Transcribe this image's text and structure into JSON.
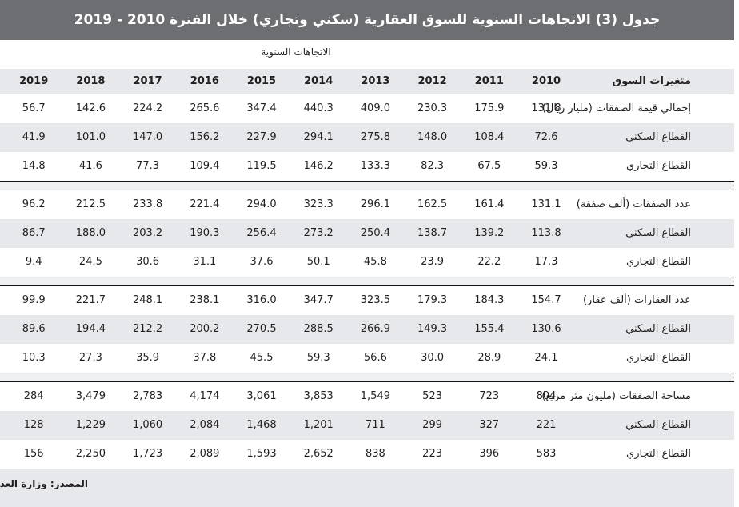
{
  "header": {
    "title": "جدول (3) الاتجاهات السنوية للسوق العقارية (سكني وتجاري) خلال الفترة 2010 - 2019",
    "subheading": "الاتجاهات السنوية"
  },
  "table": {
    "columns": [
      "متغيرات السوق",
      "2010",
      "2011",
      "2012",
      "2013",
      "2014",
      "2015",
      "2016",
      "2017",
      "2018",
      "2019"
    ],
    "groups": [
      [
        {
          "label": "إجمالي قيمة الصفقات (مليار ريال)",
          "values": [
            "131.8",
            "175.9",
            "230.3",
            "409.0",
            "440.3",
            "347.4",
            "265.6",
            "224.2",
            "142.6",
            "56.7"
          ]
        },
        {
          "label": "القطاع السكني",
          "values": [
            "72.6",
            "108.4",
            "148.0",
            "275.8",
            "294.1",
            "227.9",
            "156.2",
            "147.0",
            "101.0",
            "41.9"
          ]
        },
        {
          "label": "القطاع التجاري",
          "values": [
            "59.3",
            "67.5",
            "82.3",
            "133.3",
            "146.2",
            "119.5",
            "109.4",
            "77.3",
            "41.6",
            "14.8"
          ]
        }
      ],
      [
        {
          "label": "عدد الصفقات (ألف صفقة)",
          "values": [
            "131.1",
            "161.4",
            "162.5",
            "296.1",
            "323.3",
            "294.0",
            "221.4",
            "233.8",
            "212.5",
            "96.2"
          ]
        },
        {
          "label": "القطاع السكني",
          "values": [
            "113.8",
            "139.2",
            "138.7",
            "250.4",
            "273.2",
            "256.4",
            "190.3",
            "203.2",
            "188.0",
            "86.7"
          ]
        },
        {
          "label": "القطاع التجاري",
          "values": [
            "17.3",
            "22.2",
            "23.9",
            "45.8",
            "50.1",
            "37.6",
            "31.1",
            "30.6",
            "24.5",
            "9.4"
          ]
        }
      ],
      [
        {
          "label": "عدد العقارات (ألف عقار)",
          "values": [
            "154.7",
            "184.3",
            "179.3",
            "323.5",
            "347.7",
            "316.0",
            "238.1",
            "248.1",
            "221.7",
            "99.9"
          ]
        },
        {
          "label": "القطاع السكني",
          "values": [
            "130.6",
            "155.4",
            "149.3",
            "266.9",
            "288.5",
            "270.5",
            "200.2",
            "212.2",
            "194.4",
            "89.6"
          ]
        },
        {
          "label": "القطاع التجاري",
          "values": [
            "24.1",
            "28.9",
            "30.0",
            "56.6",
            "59.3",
            "45.5",
            "37.8",
            "35.9",
            "27.3",
            "10.3"
          ]
        }
      ],
      [
        {
          "label": "مساحة الصفقات (مليون متر مربع)",
          "values": [
            "804",
            "723",
            "523",
            "1,549",
            "3,853",
            "3,061",
            "4,174",
            "2,783",
            "3,479",
            "284"
          ]
        },
        {
          "label": "القطاع السكني",
          "values": [
            "221",
            "327",
            "299",
            "711",
            "1,201",
            "1,468",
            "2,084",
            "1,060",
            "1,229",
            "128"
          ]
        },
        {
          "label": "القطاع التجاري",
          "values": [
            "583",
            "396",
            "223",
            "838",
            "2,652",
            "1,593",
            "2,089",
            "1,723",
            "2,250",
            "156"
          ]
        }
      ]
    ]
  },
  "footer": {
    "source": "المصدر: وزارة العدل"
  }
}
